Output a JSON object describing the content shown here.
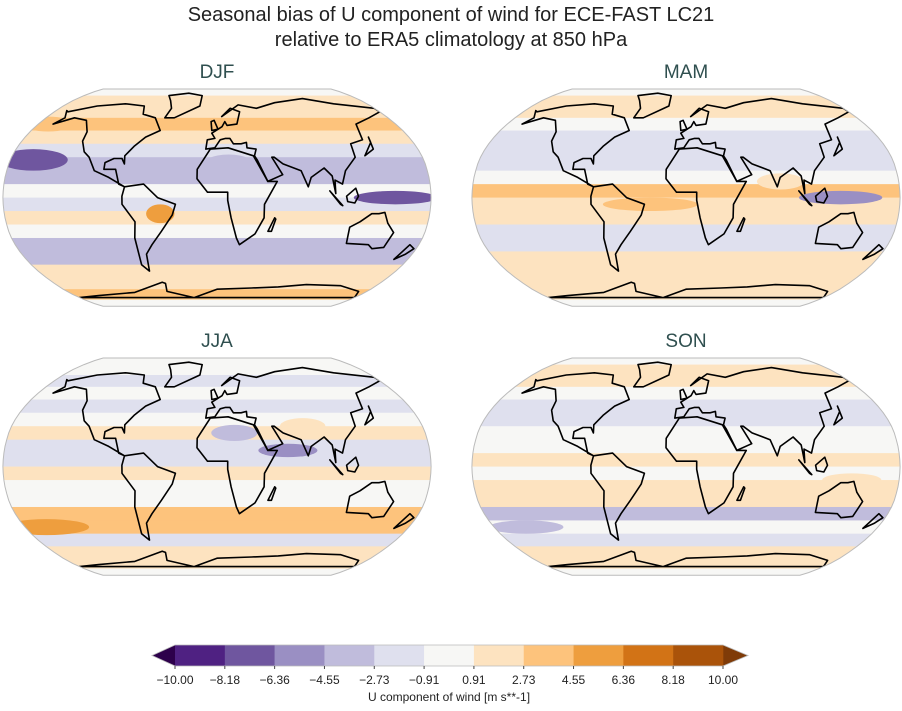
{
  "title_line1": "Seasonal bias of U component of wind for ECE-FAST LC21",
  "title_line2": "relative to ERA5 climatology at 850 hPa",
  "panels": [
    {
      "season": "DJF"
    },
    {
      "season": "MAM"
    },
    {
      "season": "JJA"
    },
    {
      "season": "SON"
    }
  ],
  "projection": "Robinson",
  "colorbar": {
    "label": "U component of wind [m s**-1]",
    "ticks": [
      "−10.00",
      "−8.18",
      "−6.36",
      "−4.55",
      "−2.73",
      "−0.91",
      "0.91",
      "2.73",
      "4.55",
      "6.36",
      "8.18",
      "10.00"
    ],
    "colors": [
      "#4f2182",
      "#6f569f",
      "#9a8fc3",
      "#c0bcdc",
      "#dfe0ee",
      "#f7f7f5",
      "#fde3c0",
      "#fdc37c",
      "#ee9e3e",
      "#d27316",
      "#aa530a"
    ],
    "under_color": "#2d004b",
    "over_color": "#7f3b08",
    "extend": "both"
  }
}
